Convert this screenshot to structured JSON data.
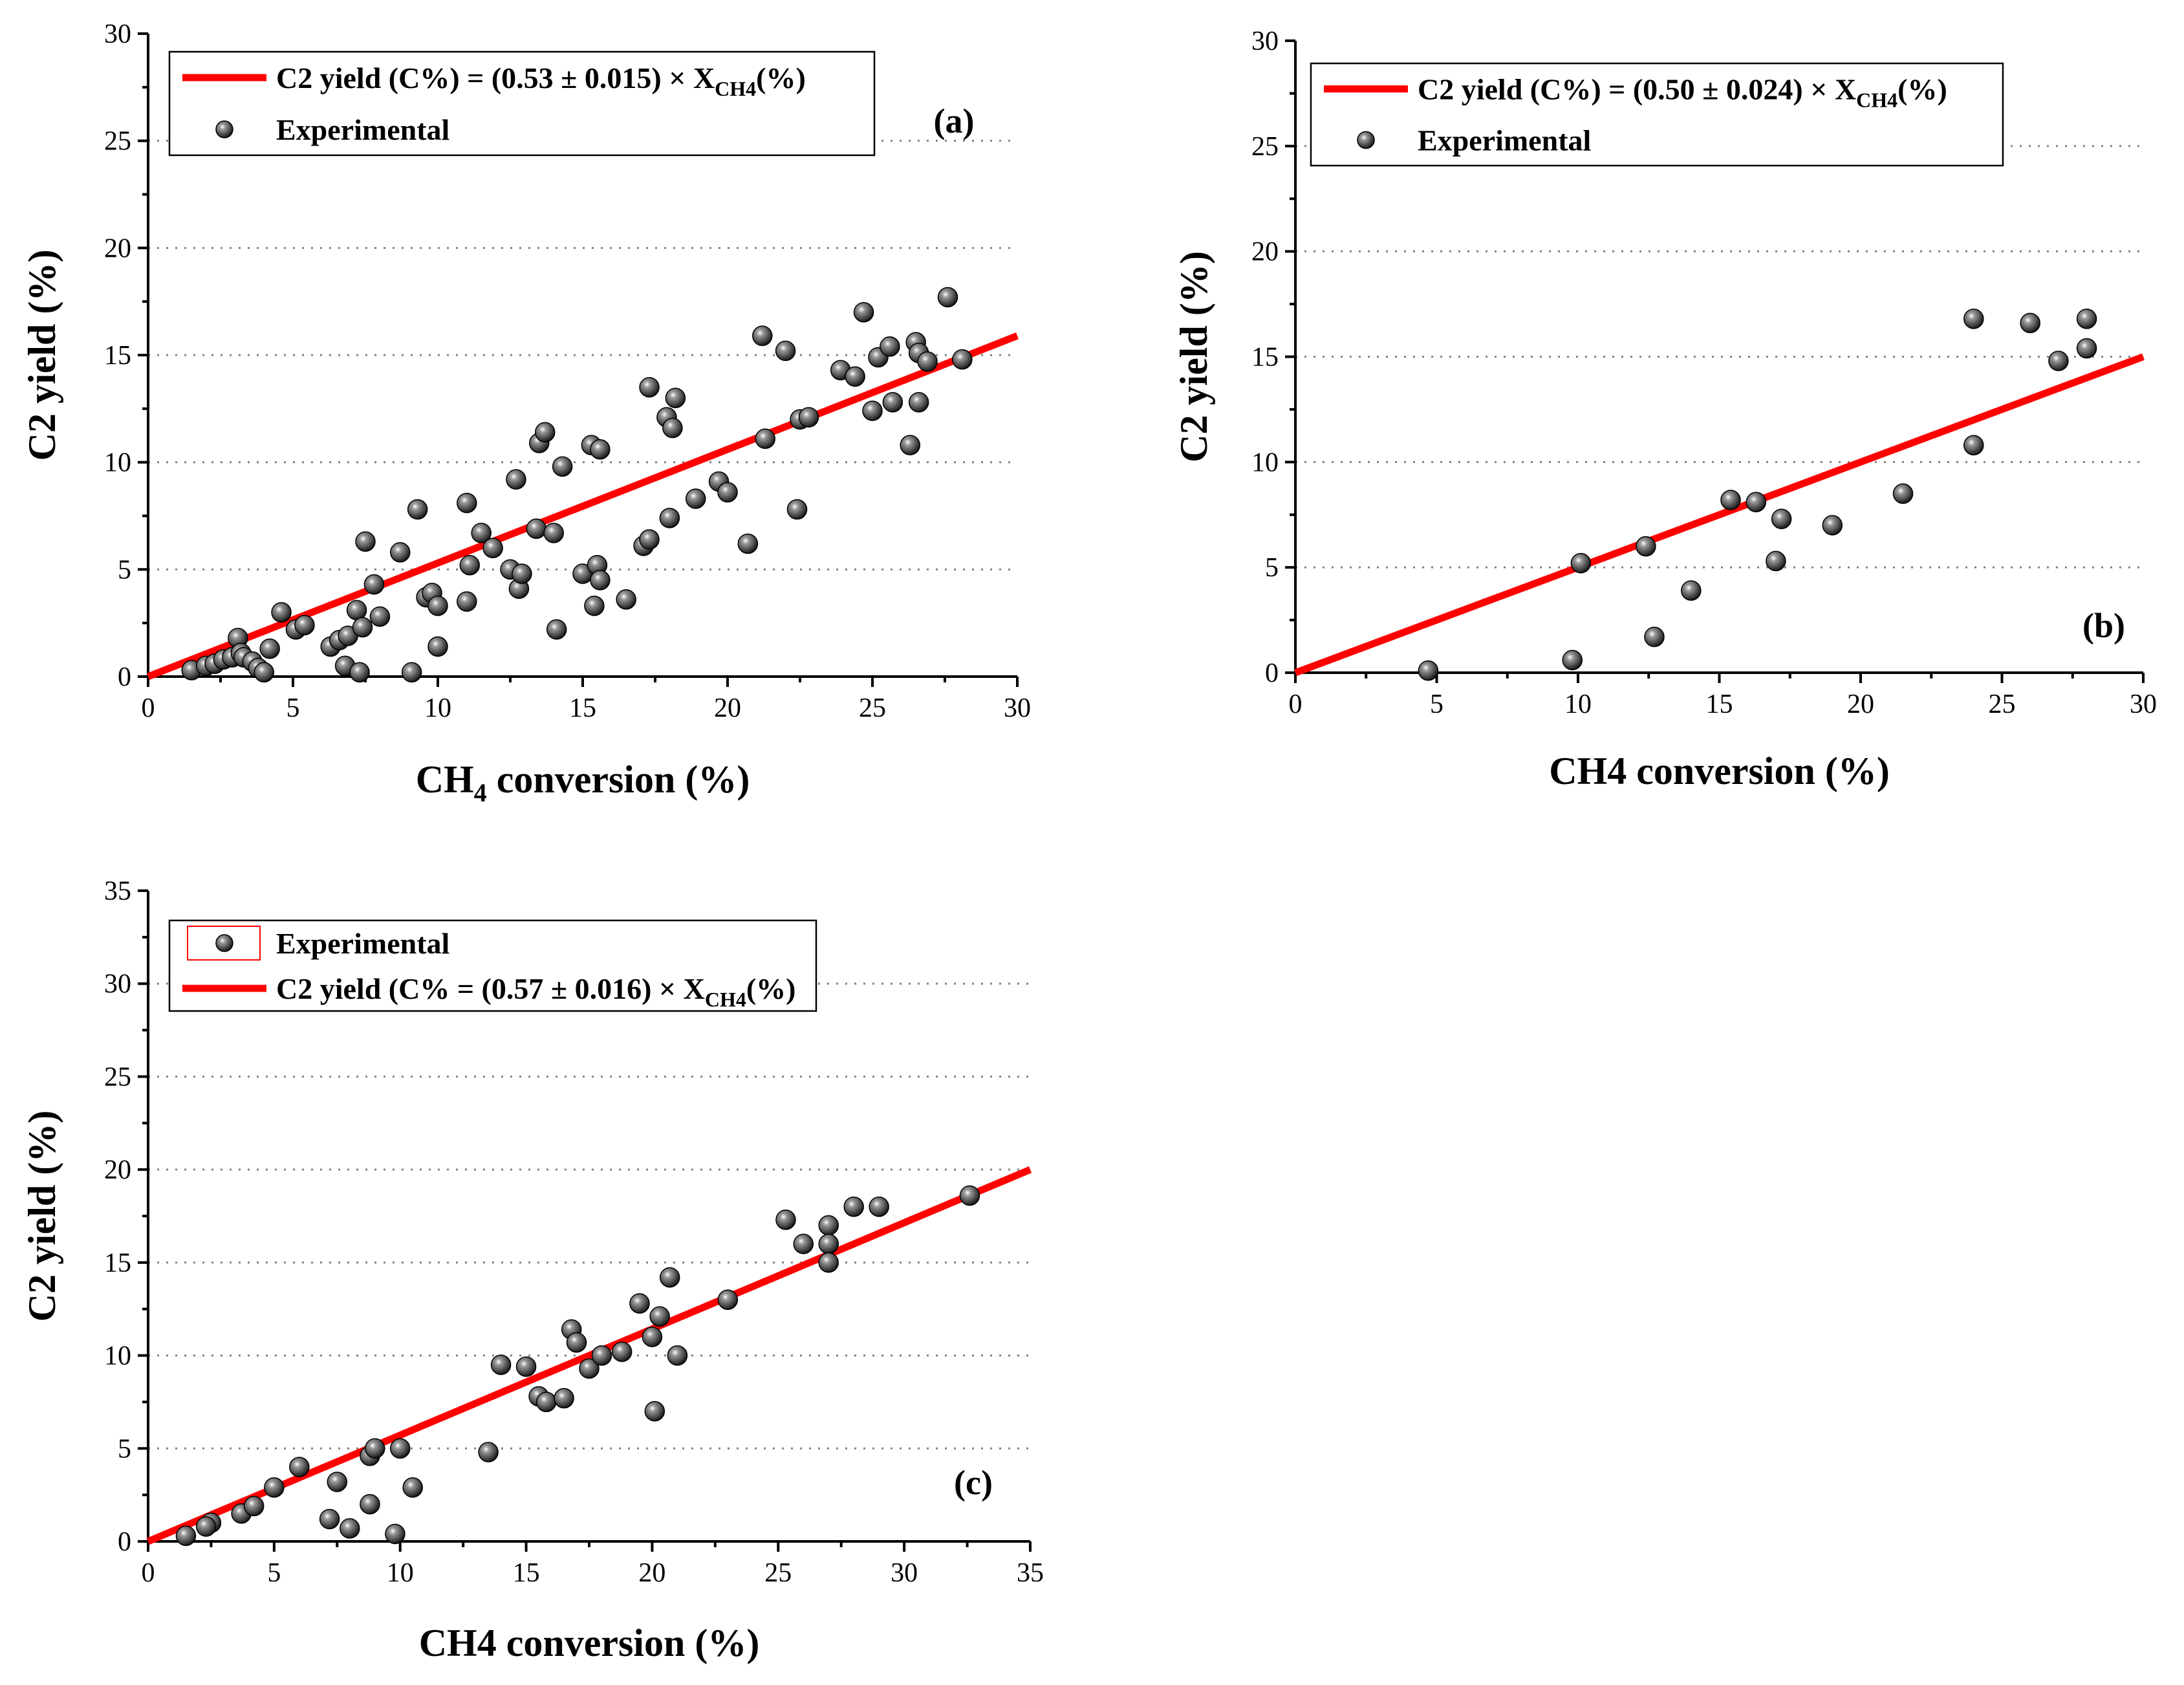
{
  "colors": {
    "fit": "#ff0000",
    "point": "#1a1a1a",
    "grid": "#808080"
  },
  "chart_data": [
    {
      "id": "a",
      "type": "scatter",
      "panel_label": "(a)",
      "xlabel": {
        "main": "CH",
        "sub": "4",
        "rest": " conversion (%)"
      },
      "ylabel": "C2 yield (%)",
      "xlim": [
        0,
        30
      ],
      "ylim": [
        0,
        30
      ],
      "xticks": [
        0,
        5,
        10,
        15,
        20,
        25,
        30
      ],
      "yticks": [
        0,
        5,
        10,
        15,
        20,
        25,
        30
      ],
      "gridlines": [
        5,
        10,
        15,
        20,
        25
      ],
      "legend": {
        "placement": "top-left",
        "fit_label": {
          "pre": "C2 yield (C%) = (0.53 ± 0.015) × X",
          "sub": "CH4",
          "post": "(%)"
        },
        "points_label": "Experimental",
        "order": [
          "fit",
          "points"
        ]
      },
      "fit": {
        "slope": 0.53,
        "x_range": [
          0,
          30
        ]
      },
      "series": [
        {
          "name": "Experimental",
          "points": [
            [
              1.5,
              0.3
            ],
            [
              2,
              0.5
            ],
            [
              2.3,
              0.6
            ],
            [
              2.6,
              0.8
            ],
            [
              2.9,
              0.9
            ],
            [
              3.1,
              1.8
            ],
            [
              3.2,
              1.1
            ],
            [
              3.3,
              0.9
            ],
            [
              3.6,
              0.7
            ],
            [
              3.8,
              0.4
            ],
            [
              4,
              0.2
            ],
            [
              4.2,
              1.3
            ],
            [
              4.6,
              3
            ],
            [
              5.1,
              2.2
            ],
            [
              5.4,
              2.4
            ],
            [
              6.3,
              1.4
            ],
            [
              6.6,
              1.7
            ],
            [
              6.8,
              0.5
            ],
            [
              6.9,
              1.9
            ],
            [
              7.2,
              3.1
            ],
            [
              7.3,
              0.2
            ],
            [
              7.4,
              2.3
            ],
            [
              7.5,
              6.3
            ],
            [
              7.8,
              4.3
            ],
            [
              8,
              2.8
            ],
            [
              8.7,
              5.8
            ],
            [
              9.1,
              0.2
            ],
            [
              9.3,
              7.8
            ],
            [
              9.6,
              3.7
            ],
            [
              9.8,
              3.9
            ],
            [
              10,
              3.3
            ],
            [
              10,
              1.4
            ],
            [
              11,
              8.1
            ],
            [
              11,
              3.5
            ],
            [
              11.1,
              5.2
            ],
            [
              11.5,
              6.7
            ],
            [
              11.9,
              6
            ],
            [
              12.5,
              5
            ],
            [
              12.7,
              9.2
            ],
            [
              12.8,
              4.1
            ],
            [
              12.9,
              4.8
            ],
            [
              13.4,
              6.9
            ],
            [
              13.5,
              10.9
            ],
            [
              13.7,
              11.4
            ],
            [
              14,
              6.7
            ],
            [
              14.1,
              2.2
            ],
            [
              14.3,
              9.8
            ],
            [
              15,
              4.8
            ],
            [
              15.3,
              10.8
            ],
            [
              15.4,
              3.3
            ],
            [
              15.5,
              5.2
            ],
            [
              15.6,
              4.5
            ],
            [
              15.6,
              10.6
            ],
            [
              16.5,
              3.6
            ],
            [
              17.1,
              6.1
            ],
            [
              17.3,
              13.5
            ],
            [
              17.3,
              6.4
            ],
            [
              17.9,
              12.1
            ],
            [
              18,
              7.4
            ],
            [
              18.1,
              11.6
            ],
            [
              18.2,
              13
            ],
            [
              18.9,
              8.3
            ],
            [
              19.7,
              9.1
            ],
            [
              20,
              8.6
            ],
            [
              20.7,
              6.2
            ],
            [
              21.2,
              15.9
            ],
            [
              21.3,
              11.1
            ],
            [
              22,
              15.2
            ],
            [
              22.4,
              7.8
            ],
            [
              22.5,
              12
            ],
            [
              22.8,
              12.1
            ],
            [
              23.9,
              14.3
            ],
            [
              24.4,
              14
            ],
            [
              24.7,
              17
            ],
            [
              25,
              12.4
            ],
            [
              25.2,
              14.9
            ],
            [
              25.6,
              15.4
            ],
            [
              25.7,
              12.8
            ],
            [
              26.3,
              10.8
            ],
            [
              26.5,
              15.6
            ],
            [
              26.6,
              12.8
            ],
            [
              26.6,
              15.1
            ],
            [
              26.9,
              14.7
            ],
            [
              27.6,
              17.7
            ],
            [
              28.1,
              14.8
            ]
          ]
        }
      ]
    },
    {
      "id": "b",
      "type": "scatter",
      "panel_label": "(b)",
      "xlabel": {
        "main": "CH4",
        "sub": "",
        "rest": " conversion (%)"
      },
      "ylabel": "C2 yield (%)",
      "xlim": [
        0,
        30
      ],
      "ylim": [
        0,
        30
      ],
      "xticks": [
        0,
        5,
        10,
        15,
        20,
        25,
        30
      ],
      "yticks": [
        0,
        5,
        10,
        15,
        20,
        25,
        30
      ],
      "gridlines": [
        5,
        10,
        15,
        20,
        25
      ],
      "legend": {
        "placement": "top-left",
        "fit_label": {
          "pre": "C2 yield (C%) = (0.50 ± 0.024) × X",
          "sub": "CH4",
          "post": "(%)"
        },
        "points_label": "Experimental",
        "order": [
          "fit",
          "points"
        ]
      },
      "fit": {
        "slope": 0.5,
        "x_range": [
          0,
          30
        ]
      },
      "series": [
        {
          "name": "Experimental",
          "points": [
            [
              4.7,
              0.1
            ],
            [
              9.8,
              0.6
            ],
            [
              10.1,
              5.2
            ],
            [
              12.4,
              6
            ],
            [
              12.7,
              1.7
            ],
            [
              14,
              3.9
            ],
            [
              15.4,
              8.2
            ],
            [
              16.3,
              8.1
            ],
            [
              17,
              5.3
            ],
            [
              17.2,
              7.3
            ],
            [
              19,
              7
            ],
            [
              21.5,
              8.5
            ],
            [
              24,
              16.8
            ],
            [
              24,
              10.8
            ],
            [
              26,
              16.6
            ],
            [
              27,
              14.8
            ],
            [
              28,
              16.8
            ],
            [
              28,
              15.4
            ]
          ]
        }
      ]
    },
    {
      "id": "c",
      "type": "scatter",
      "panel_label": "(c)",
      "xlabel": {
        "main": "CH4",
        "sub": "",
        "rest": " conversion (%)"
      },
      "ylabel": "C2 yield (%)",
      "xlim": [
        0,
        35
      ],
      "ylim": [
        0,
        35
      ],
      "xticks": [
        0,
        5,
        10,
        15,
        20,
        25,
        30,
        35
      ],
      "yticks": [
        0,
        5,
        10,
        15,
        20,
        25,
        30,
        35
      ],
      "gridlines": [
        5,
        10,
        15,
        20,
        25,
        30
      ],
      "legend": {
        "placement": "top-left",
        "fit_label": {
          "pre": "C2 yield (C% = (0.57 ± 0.016) × X",
          "sub": "CH4",
          "post": "(%)"
        },
        "points_label": "Experimental",
        "order": [
          "points",
          "fit"
        ]
      },
      "fit": {
        "slope": 0.5714,
        "x_range": [
          0,
          35
        ]
      },
      "series": [
        {
          "name": "Experimental",
          "points": [
            [
              1.5,
              0.3
            ],
            [
              2.5,
              1
            ],
            [
              2.3,
              0.8
            ],
            [
              3.7,
              1.5
            ],
            [
              4.2,
              1.9
            ],
            [
              5,
              2.9
            ],
            [
              6,
              4
            ],
            [
              7.2,
              1.2
            ],
            [
              7.5,
              3.2
            ],
            [
              8,
              0.7
            ],
            [
              8.8,
              4.6
            ],
            [
              8.8,
              2
            ],
            [
              9,
              5
            ],
            [
              9.8,
              0.4
            ],
            [
              10,
              5
            ],
            [
              10.5,
              2.9
            ],
            [
              13.5,
              4.8
            ],
            [
              14,
              9.5
            ],
            [
              15,
              9.4
            ],
            [
              15.5,
              7.8
            ],
            [
              15.8,
              7.5
            ],
            [
              16.5,
              7.7
            ],
            [
              16.8,
              11.4
            ],
            [
              17,
              10.7
            ],
            [
              17.5,
              9.3
            ],
            [
              18,
              10
            ],
            [
              18.8,
              10.2
            ],
            [
              19.5,
              12.8
            ],
            [
              20,
              11
            ],
            [
              20.1,
              7
            ],
            [
              20.3,
              12.1
            ],
            [
              20.7,
              14.2
            ],
            [
              21,
              10
            ],
            [
              23,
              13
            ],
            [
              25.3,
              17.3
            ],
            [
              26,
              16
            ],
            [
              27,
              17
            ],
            [
              27,
              16
            ],
            [
              27,
              15
            ],
            [
              28,
              18
            ],
            [
              29,
              18
            ],
            [
              32.6,
              18.6
            ]
          ]
        }
      ]
    }
  ]
}
